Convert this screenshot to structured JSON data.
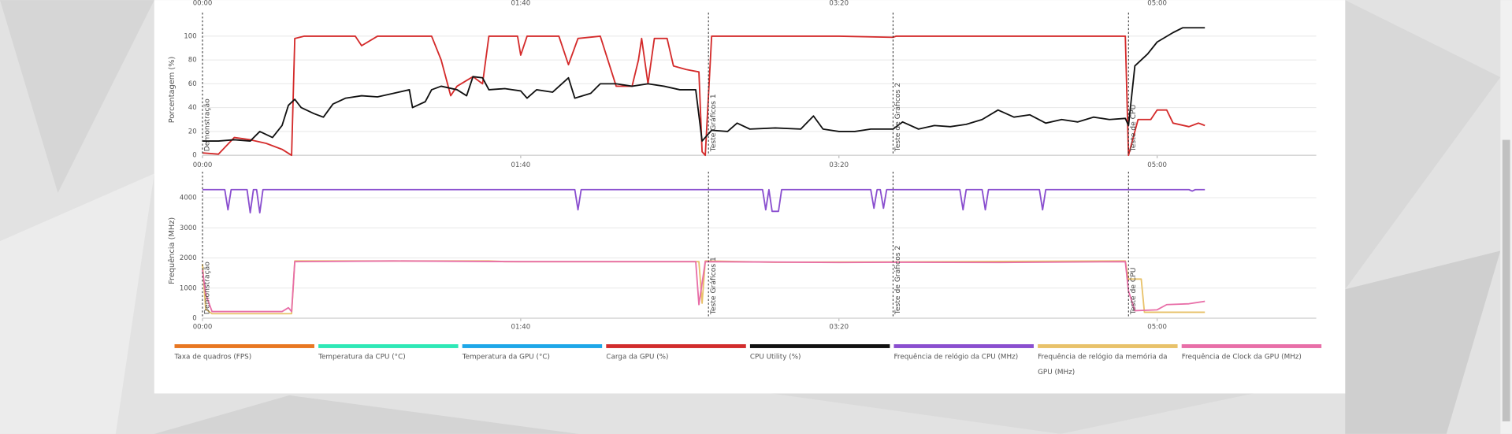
{
  "chart_data": [
    {
      "type": "line",
      "xlim": [
        0,
        350
      ],
      "xticks": [
        {
          "value": 0,
          "label": "00:00"
        },
        {
          "value": 100,
          "label": "01:40"
        },
        {
          "value": 200,
          "label": "03:20"
        },
        {
          "value": 300,
          "label": "05:00"
        }
      ]
    },
    {
      "type": "line",
      "ylabel": "Porcentagem (%)",
      "xlim": [
        0,
        350
      ],
      "ylim": [
        0,
        110
      ],
      "xticks": [
        {
          "value": 0,
          "label": "00:00"
        },
        {
          "value": 100,
          "label": "01:40"
        },
        {
          "value": 200,
          "label": "03:20"
        },
        {
          "value": 300,
          "label": "05:00"
        }
      ],
      "yticks": [
        0,
        20,
        40,
        60,
        80,
        100
      ],
      "grid": true,
      "annotations": [
        {
          "x": 0,
          "label": "Demonstração"
        },
        {
          "x": 159,
          "label": "Teste Gráficos 1"
        },
        {
          "x": 217,
          "label": "Teste de Gráficos 2"
        },
        {
          "x": 291,
          "label": "Teste de CPU"
        }
      ],
      "series": [
        {
          "color": "#d42b2b",
          "x": [
            0,
            5,
            10,
            15,
            20,
            25,
            28,
            29,
            32,
            48,
            50,
            55,
            60,
            65,
            72,
            75,
            77,
            78,
            80,
            85,
            88,
            90,
            95,
            99,
            100,
            102,
            110,
            112,
            115,
            118,
            125,
            130,
            135,
            137,
            138,
            140,
            142,
            146,
            148,
            152,
            156,
            157,
            158,
            160,
            170,
            200,
            217,
            218,
            290,
            291,
            292,
            294,
            298,
            300,
            303,
            305,
            310,
            313,
            315
          ],
          "values": [
            2,
            1,
            15,
            13,
            10,
            5,
            0,
            98,
            100,
            100,
            92,
            100,
            100,
            100,
            100,
            80,
            60,
            50,
            58,
            66,
            60,
            100,
            100,
            100,
            84,
            100,
            100,
            100,
            76,
            98,
            100,
            58,
            58,
            80,
            98,
            60,
            98,
            98,
            75,
            72,
            70,
            3,
            0,
            100,
            100,
            100,
            99,
            100,
            100,
            0,
            10,
            30,
            30,
            38,
            38,
            27,
            24,
            27,
            25
          ]
        },
        {
          "color": "#111111",
          "x": [
            0,
            5,
            10,
            15,
            18,
            22,
            25,
            27,
            29,
            31,
            35,
            38,
            41,
            45,
            50,
            55,
            60,
            65,
            66,
            70,
            72,
            75,
            80,
            83,
            85,
            88,
            90,
            95,
            100,
            102,
            105,
            110,
            115,
            117,
            122,
            125,
            130,
            135,
            140,
            145,
            150,
            155,
            157,
            160,
            165,
            168,
            172,
            180,
            188,
            192,
            195,
            200,
            205,
            210,
            217,
            220,
            225,
            230,
            235,
            240,
            245,
            250,
            255,
            260,
            265,
            270,
            275,
            280,
            285,
            290,
            291,
            293,
            297,
            300,
            305,
            308,
            315
          ],
          "values": [
            12,
            12,
            13,
            12,
            20,
            15,
            25,
            42,
            47,
            40,
            35,
            32,
            43,
            48,
            50,
            49,
            52,
            55,
            40,
            45,
            55,
            58,
            55,
            50,
            66,
            65,
            55,
            56,
            54,
            48,
            55,
            53,
            65,
            48,
            52,
            60,
            60,
            58,
            60,
            58,
            55,
            55,
            12,
            21,
            20,
            27,
            22,
            23,
            22,
            33,
            22,
            20,
            20,
            22,
            22,
            28,
            22,
            25,
            24,
            26,
            30,
            38,
            32,
            34,
            27,
            30,
            28,
            32,
            30,
            31,
            25,
            75,
            85,
            95,
            103,
            107,
            107
          ]
        }
      ]
    },
    {
      "type": "line",
      "ylabel": "Frequência (MHz)",
      "xlim": [
        0,
        350
      ],
      "ylim": [
        0,
        4480
      ],
      "xticks": [
        {
          "value": 0,
          "label": "00:00"
        },
        {
          "value": 100,
          "label": "01:40"
        },
        {
          "value": 200,
          "label": "03:20"
        },
        {
          "value": 300,
          "label": "05:00"
        }
      ],
      "yticks": [
        0,
        1000,
        2000,
        3000,
        4000
      ],
      "grid": true,
      "annotations": [
        {
          "x": 0,
          "label": "Demonstração"
        },
        {
          "x": 159,
          "label": "Teste Gráficos 1"
        },
        {
          "x": 217,
          "label": "Teste de Gráficos 2"
        },
        {
          "x": 291,
          "label": "Teste de CPU"
        }
      ],
      "series": [
        {
          "color": "#8a4fcf",
          "x": [
            0,
            7,
            8,
            9,
            14,
            15,
            16,
            17,
            18,
            19,
            117,
            118,
            119,
            176,
            177,
            178,
            179,
            181,
            182,
            210,
            211,
            212,
            213,
            214,
            215,
            238,
            239,
            240,
            245,
            246,
            247,
            263,
            264,
            265,
            310,
            311,
            312,
            315
          ],
          "values": [
            4270,
            4270,
            3600,
            4270,
            4270,
            3500,
            4270,
            4270,
            3500,
            4270,
            4270,
            3600,
            4270,
            4270,
            3600,
            4270,
            3550,
            3550,
            4270,
            4270,
            3650,
            4270,
            4270,
            3650,
            4270,
            4270,
            3600,
            4270,
            4270,
            3600,
            4270,
            4270,
            3600,
            4270,
            4270,
            4220,
            4270,
            4270
          ]
        },
        {
          "color": "#e8c26a",
          "x": [
            0,
            1,
            3,
            28,
            29,
            90,
            95,
            156,
            157,
            158,
            180,
            217,
            290,
            291,
            295,
            296,
            315
          ],
          "values": [
            1800,
            300,
            150,
            150,
            1900,
            1900,
            1880,
            1880,
            500,
            1900,
            1860,
            1870,
            1900,
            1300,
            1300,
            200,
            200
          ]
        },
        {
          "color": "#e86fa8",
          "x": [
            0,
            1,
            3,
            25,
            27,
            28,
            29,
            60,
            100,
            155,
            156,
            158,
            200,
            217,
            250,
            290,
            291,
            293,
            300,
            303,
            310,
            315
          ],
          "values": [
            1600,
            800,
            220,
            220,
            350,
            220,
            1880,
            1900,
            1880,
            1880,
            450,
            1880,
            1850,
            1860,
            1850,
            1880,
            900,
            250,
            280,
            450,
            480,
            560
          ]
        }
      ]
    }
  ],
  "legend": [
    {
      "name": "Taxa de quadros (FPS)",
      "color": "#e87722"
    },
    {
      "name": "Temperatura da CPU (°C)",
      "color": "#2ee8b6"
    },
    {
      "name": "Temperatura da GPU (°C)",
      "color": "#1ea7e8"
    },
    {
      "name": "Carga da GPU (%)",
      "color": "#d22c2c"
    },
    {
      "name": "CPU Utility (%)",
      "color": "#111111"
    },
    {
      "name": "Frequência de relógio da CPU (MHz)",
      "color": "#8a4fcf"
    },
    {
      "name": "Frequência de relógio da memória da GPU (MHz)",
      "color": "#e8c26a"
    },
    {
      "name": "Frequência de Clock da GPU (MHz)",
      "color": "#e86fa8"
    }
  ]
}
